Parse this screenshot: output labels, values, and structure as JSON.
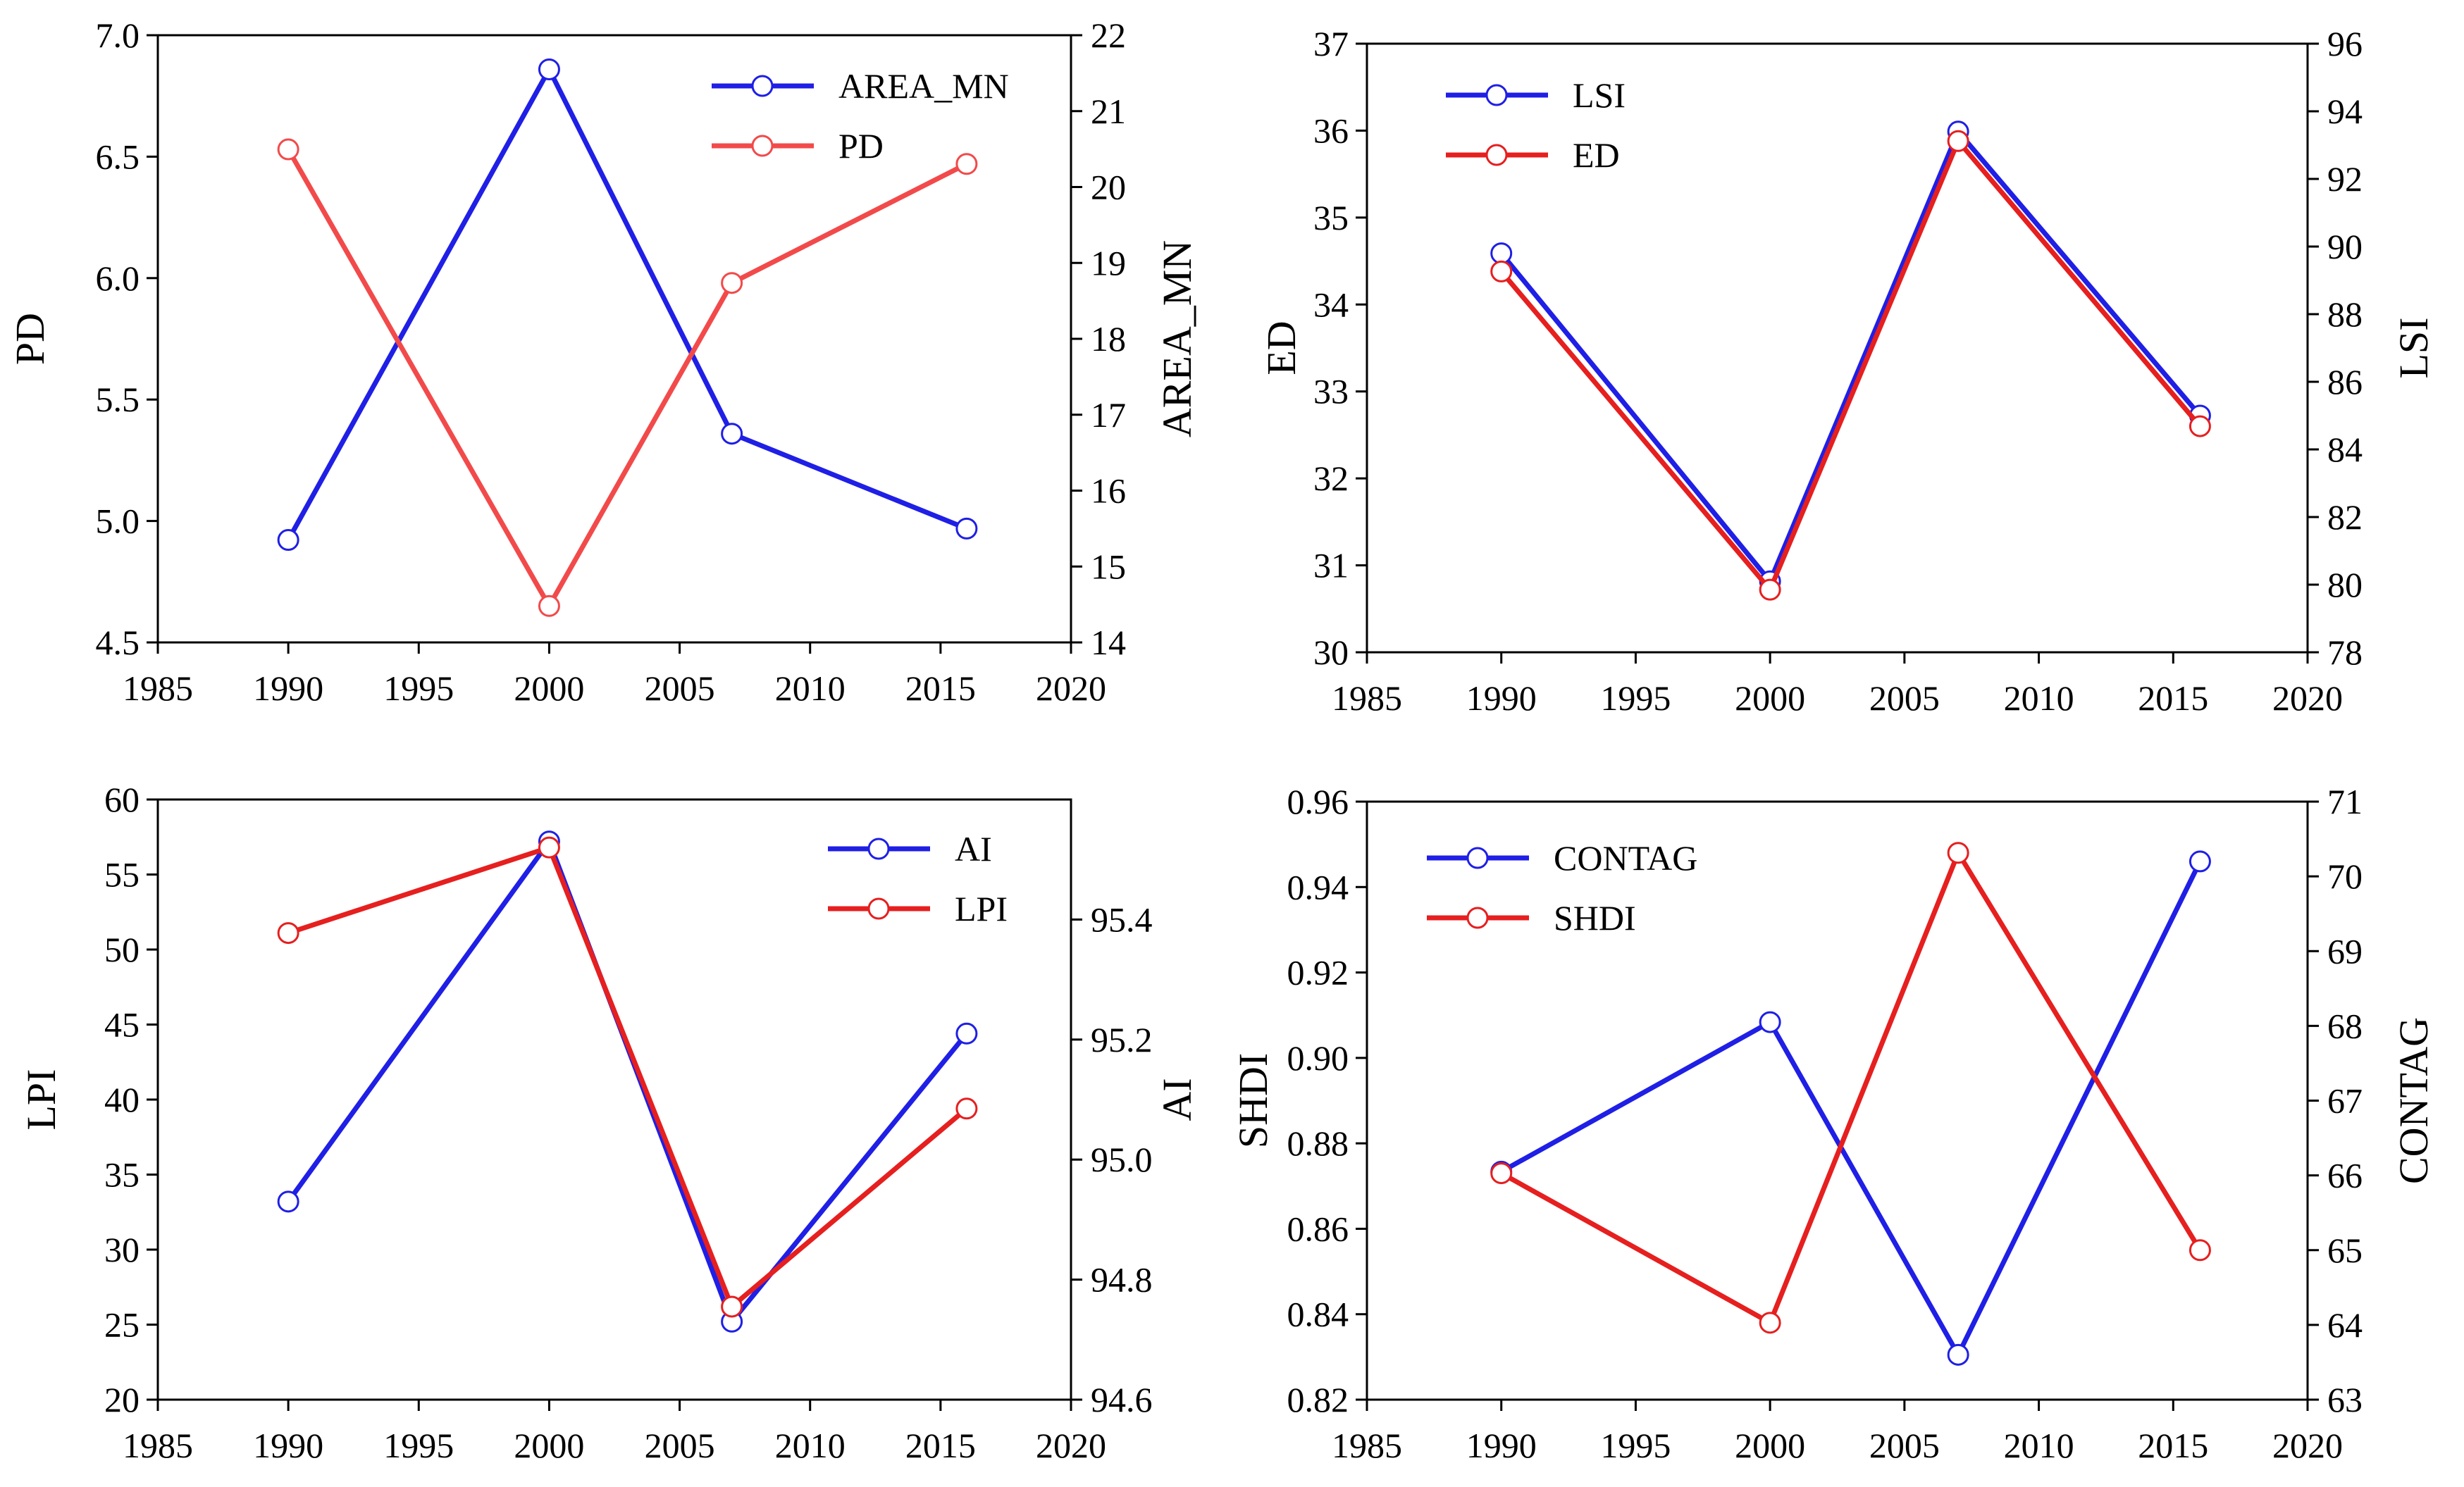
{
  "chart_data": [
    {
      "type": "line",
      "x": [
        1990,
        2000,
        2007,
        2016
      ],
      "xlim": [
        1985,
        2020
      ],
      "xticks": [
        "1985",
        "1990",
        "1995",
        "2000",
        "2005",
        "2010",
        "2015",
        "2020"
      ],
      "left_axis": {
        "label": "PD",
        "lim": [
          4.5,
          7.0
        ],
        "ticks": [
          "4.5",
          "5.0",
          "5.5",
          "6.0",
          "6.5",
          "7.0"
        ]
      },
      "right_axis": {
        "label": "AREA_MN",
        "lim": [
          14,
          22
        ],
        "ticks": [
          "14",
          "15",
          "16",
          "17",
          "18",
          "19",
          "20",
          "21",
          "22"
        ]
      },
      "legend_position": "top-right",
      "series": [
        {
          "name": "AREA_MN",
          "axis": "right",
          "color": "#1f1fe6",
          "values": [
            15.35,
            21.55,
            16.75,
            15.5
          ]
        },
        {
          "name": "PD",
          "axis": "left",
          "color": "#f24a4a",
          "values": [
            6.53,
            4.65,
            5.98,
            6.47
          ]
        }
      ],
      "grid": false
    },
    {
      "type": "line",
      "x": [
        1990,
        2000,
        2007,
        2016
      ],
      "xlim": [
        1985,
        2020
      ],
      "xticks": [
        "1985",
        "1990",
        "1995",
        "2000",
        "2005",
        "2010",
        "2015",
        "2020"
      ],
      "left_axis": {
        "label": "ED",
        "lim": [
          30,
          37
        ],
        "ticks": [
          "30",
          "31",
          "32",
          "33",
          "34",
          "35",
          "36",
          "37"
        ]
      },
      "right_axis": {
        "label": "LSI",
        "lim": [
          78,
          96
        ],
        "ticks": [
          "78",
          "80",
          "82",
          "84",
          "86",
          "88",
          "90",
          "92",
          "94",
          "96"
        ]
      },
      "legend_position": "top-left",
      "series": [
        {
          "name": "LSI",
          "axis": "right",
          "color": "#1f1fe6",
          "values": [
            89.8,
            80.1,
            93.4,
            85.0
          ]
        },
        {
          "name": "ED",
          "axis": "left",
          "color": "#e61f1f",
          "values": [
            34.38,
            30.72,
            35.88,
            32.6
          ]
        }
      ],
      "grid": false
    },
    {
      "type": "line",
      "x": [
        1990,
        2000,
        2007,
        2016
      ],
      "xlim": [
        1985,
        2020
      ],
      "xticks": [
        "1985",
        "1990",
        "1995",
        "2000",
        "2005",
        "2010",
        "2015",
        "2020"
      ],
      "left_axis": {
        "label": "LPI",
        "lim": [
          20,
          60
        ],
        "ticks": [
          "20",
          "25",
          "30",
          "35",
          "40",
          "45",
          "50",
          "55",
          "60"
        ]
      },
      "right_axis": {
        "label": "AI",
        "lim": [
          94.6,
          95.6
        ],
        "ticks": [
          "94.6",
          "94.8",
          "95.0",
          "95.2",
          "95.4"
        ]
      },
      "legend_position": "top-right",
      "series": [
        {
          "name": "AI",
          "axis": "right",
          "color": "#1f1fe6",
          "values": [
            94.93,
            95.53,
            94.73,
            95.21
          ]
        },
        {
          "name": "LPI",
          "axis": "left",
          "color": "#e61f1f",
          "values": [
            51.1,
            56.8,
            26.2,
            39.4
          ]
        }
      ],
      "grid": false
    },
    {
      "type": "line",
      "x": [
        1990,
        2000,
        2007,
        2016
      ],
      "xlim": [
        1985,
        2020
      ],
      "xticks": [
        "1985",
        "1990",
        "1995",
        "2000",
        "2005",
        "2010",
        "2015",
        "2020"
      ],
      "left_axis": {
        "label": "SHDI",
        "lim": [
          0.82,
          0.96
        ],
        "ticks": [
          "0.82",
          "0.84",
          "0.86",
          "0.88",
          "0.90",
          "0.92",
          "0.94",
          "0.96"
        ]
      },
      "right_axis": {
        "label": "CONTAG",
        "lim": [
          63,
          71
        ],
        "ticks": [
          "63",
          "64",
          "65",
          "66",
          "67",
          "68",
          "69",
          "70",
          "71"
        ]
      },
      "legend_position": "top-left",
      "series": [
        {
          "name": "CONTAG",
          "axis": "right",
          "color": "#1f1fe6",
          "values": [
            66.05,
            68.05,
            63.6,
            70.2
          ]
        },
        {
          "name": "SHDI",
          "axis": "left",
          "color": "#e61f1f",
          "values": [
            0.873,
            0.838,
            0.948,
            0.855
          ]
        }
      ],
      "grid": false
    }
  ]
}
